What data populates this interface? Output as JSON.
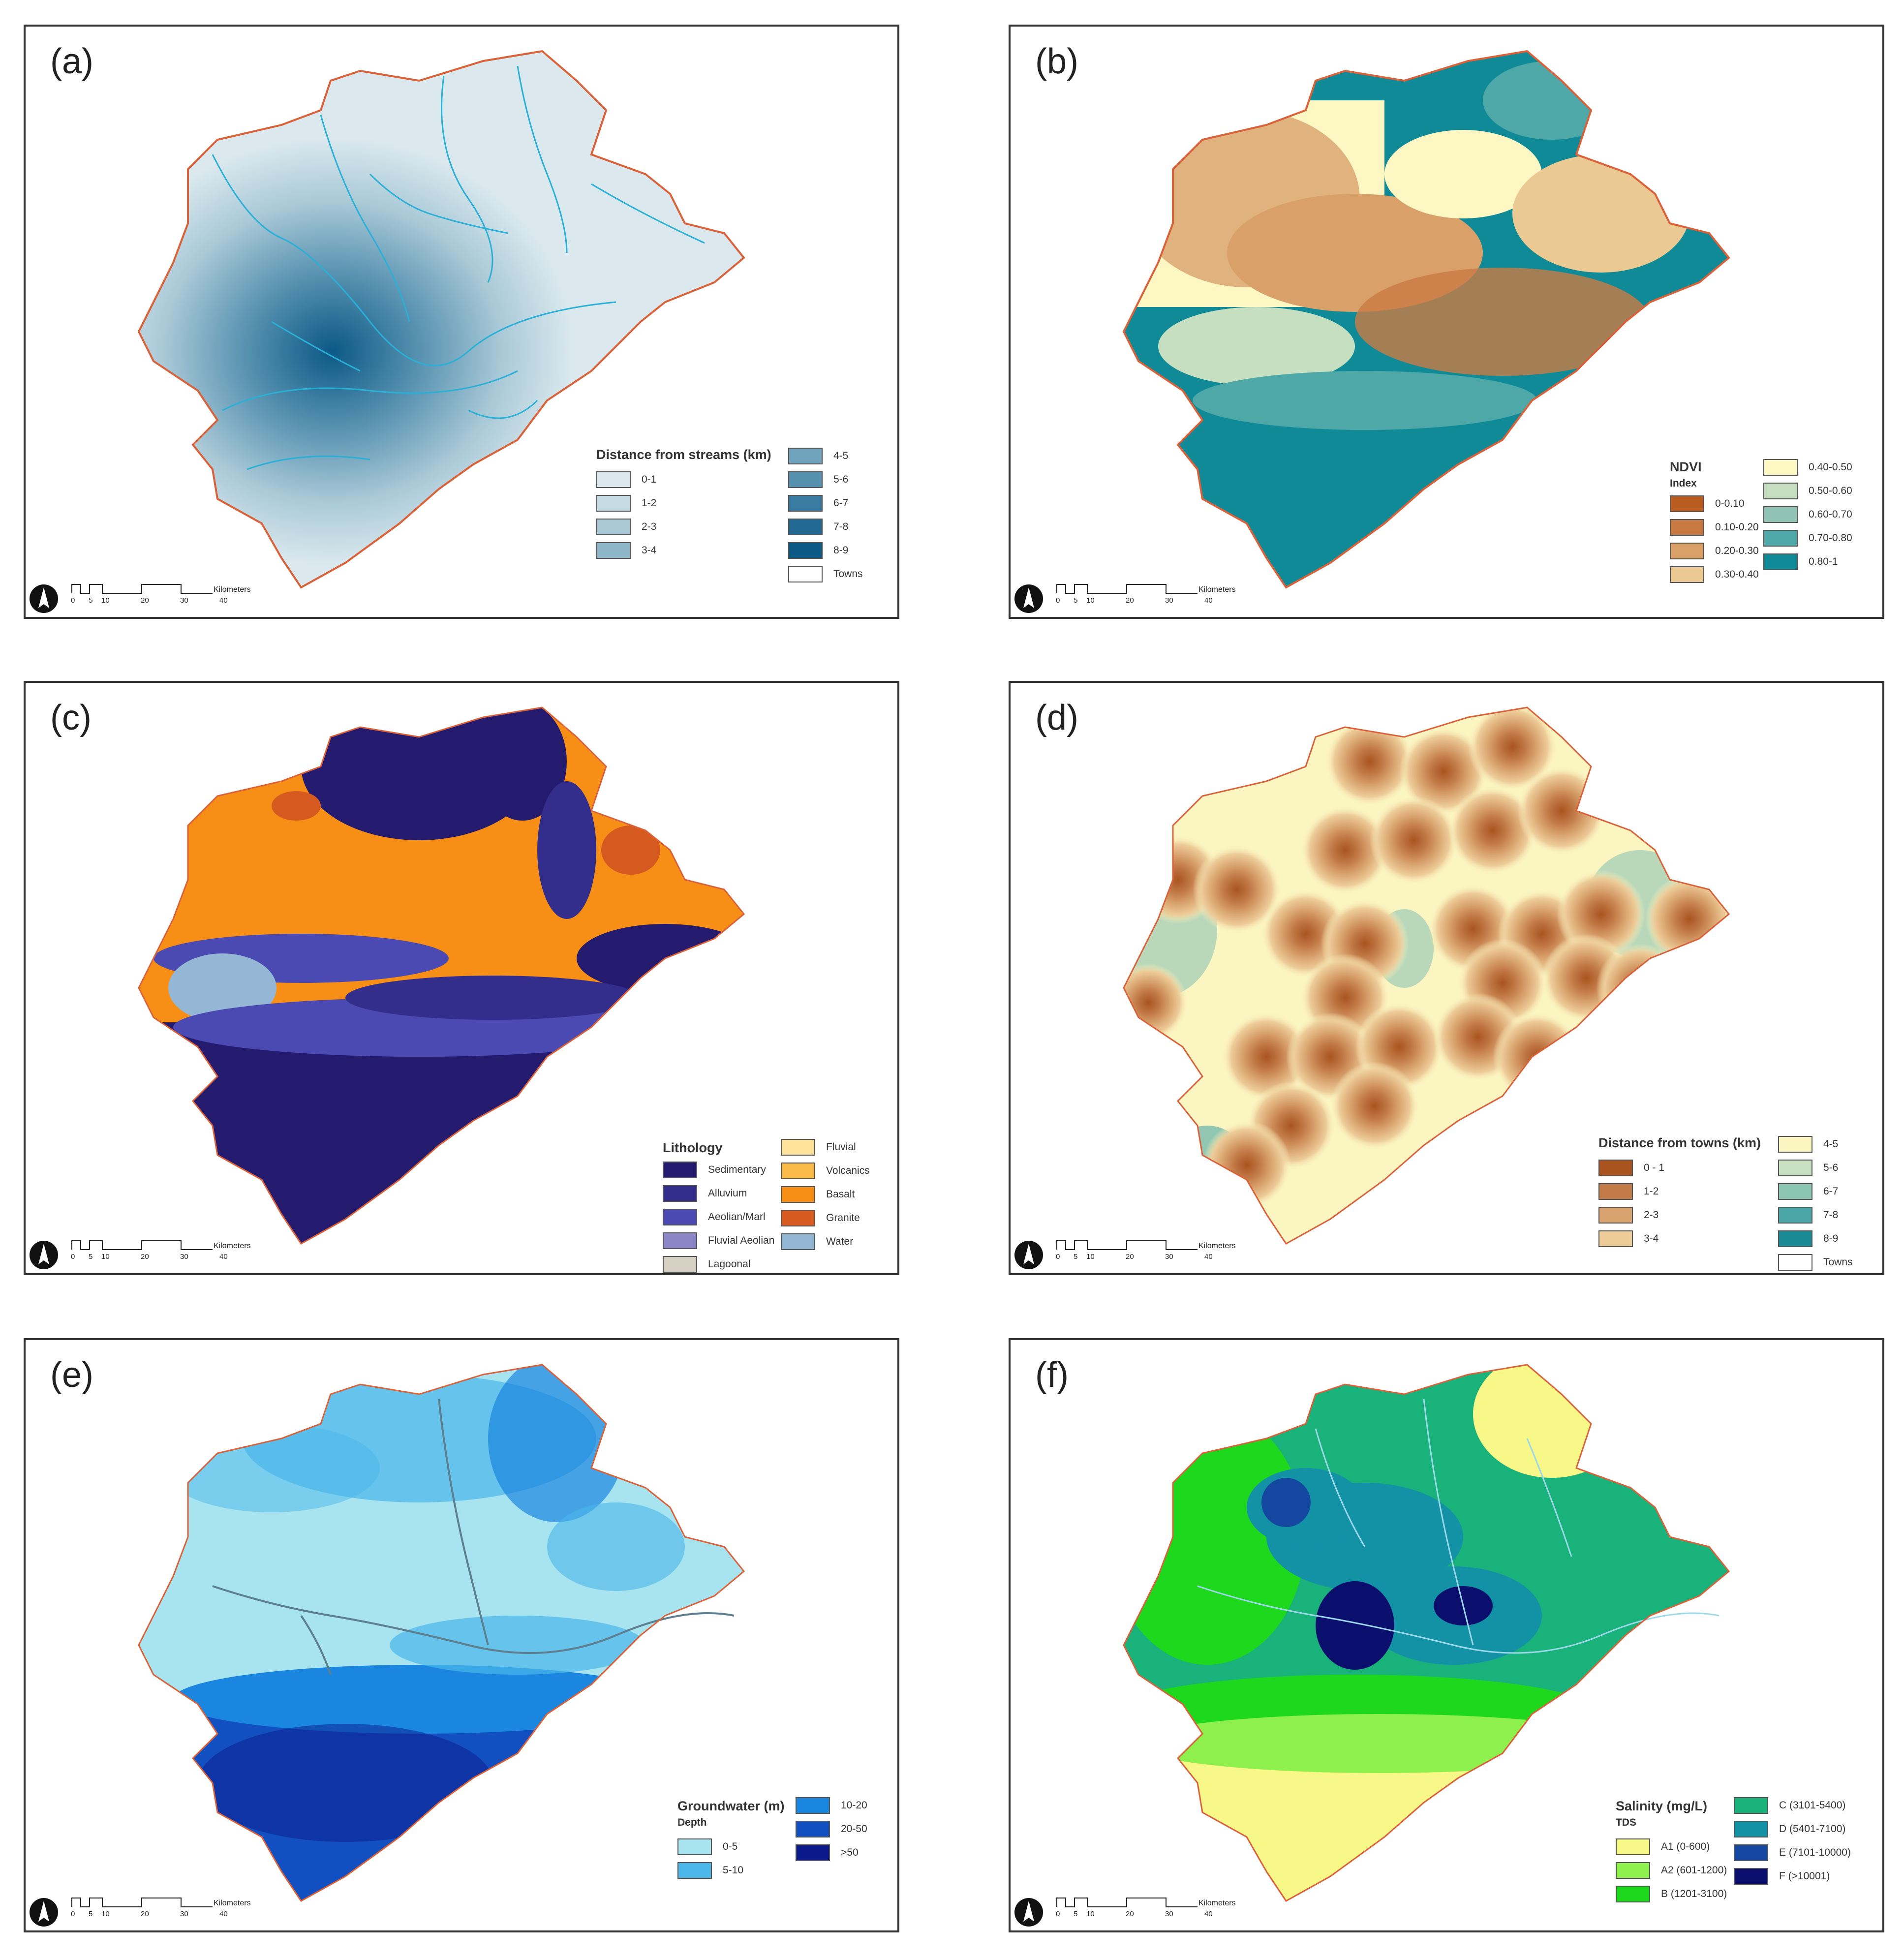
{
  "colors": {
    "boundary": "#d9623a",
    "stream": "#2ab0d6",
    "frame": "#333333"
  },
  "scale": {
    "unit": "Kilometers",
    "ticks": [
      "0",
      "5",
      "10",
      "20",
      "30",
      "40"
    ]
  },
  "panels": {
    "a": {
      "label": "(a)",
      "legend_title": "Distance from streams (km)",
      "items": [
        {
          "label": "0-1",
          "color": "#dbe9ee"
        },
        {
          "label": "1-2",
          "color": "#c4dbe4"
        },
        {
          "label": "2-3",
          "color": "#a9c9d7"
        },
        {
          "label": "3-4",
          "color": "#8db6c9"
        },
        {
          "label": "4-5",
          "color": "#71a3bc"
        },
        {
          "label": "5-6",
          "color": "#5590af"
        },
        {
          "label": "6-7",
          "color": "#3a7ca1"
        },
        {
          "label": "7-8",
          "color": "#226a94"
        },
        {
          "label": "8-9",
          "color": "#0c5986"
        },
        {
          "label": "Towns",
          "color": "#ffffff"
        }
      ]
    },
    "b": {
      "label": "(b)",
      "legend_title": "NDVI",
      "legend_sub": "Index",
      "items": [
        {
          "label": "0-0.10",
          "color": "#b85c1f"
        },
        {
          "label": "0.10-0.20",
          "color": "#c97a43"
        },
        {
          "label": "0.20-0.30",
          "color": "#daa06a"
        },
        {
          "label": "0.30-0.40",
          "color": "#ebc992"
        },
        {
          "label": "0.40-0.50",
          "color": "#fcf7c3"
        },
        {
          "label": "0.50-0.60",
          "color": "#c6dfc0"
        },
        {
          "label": "0.60-0.70",
          "color": "#8fc3b4"
        },
        {
          "label": "0.70-0.80",
          "color": "#4ea8a8"
        },
        {
          "label": "0.80-1",
          "color": "#0f8a96"
        }
      ]
    },
    "c": {
      "label": "(c)",
      "legend_title": "Lithology",
      "items": [
        {
          "label": "Sedimentary",
          "color": "#241a6e"
        },
        {
          "label": "Alluvium",
          "color": "#332d8c"
        },
        {
          "label": "Aeolian/Marl",
          "color": "#4b49b2"
        },
        {
          "label": "Fluvial Aeolian",
          "color": "#8d86c6"
        },
        {
          "label": "Lagoonal",
          "color": "#d7d1c3"
        },
        {
          "label": "Fluvial",
          "color": "#fde49a"
        },
        {
          "label": "Volcanics",
          "color": "#fbbb4a"
        },
        {
          "label": "Basalt",
          "color": "#f78f16"
        },
        {
          "label": "Granite",
          "color": "#d65a20"
        },
        {
          "label": "Water",
          "color": "#94b7d6"
        }
      ]
    },
    "d": {
      "label": "(d)",
      "legend_title": "Distance from towns (km)",
      "items": [
        {
          "label": "0 - 1",
          "color": "#a9541f"
        },
        {
          "label": "1-2",
          "color": "#c27a47"
        },
        {
          "label": "2-3",
          "color": "#d9a36f"
        },
        {
          "label": "3-4",
          "color": "#edcc98"
        },
        {
          "label": "4-5",
          "color": "#fbf5c2"
        },
        {
          "label": "5-6",
          "color": "#c7e0c0"
        },
        {
          "label": "6-7",
          "color": "#8cc4b2"
        },
        {
          "label": "7-8",
          "color": "#4aa6a6"
        },
        {
          "label": "8-9",
          "color": "#1a8a96"
        },
        {
          "label": "Towns",
          "color": "#ffffff"
        }
      ]
    },
    "e": {
      "label": "(e)",
      "legend_title": "Groundwater (m)",
      "legend_sub": "Depth",
      "items": [
        {
          "label": "0-5",
          "color": "#a8e4f0"
        },
        {
          "label": "5-10",
          "color": "#4ab6ea"
        },
        {
          "label": "10-20",
          "color": "#1a86e0"
        },
        {
          "label": "20-50",
          "color": "#124fc0"
        },
        {
          "label": ">50",
          "color": "#0a1a8a"
        }
      ]
    },
    "f": {
      "label": "(f)",
      "legend_title": "Salinity (mg/L)",
      "legend_sub": "TDS",
      "items": [
        {
          "label": "A1 (0-600)",
          "color": "#f8f889"
        },
        {
          "label": "A2 (601-1200)",
          "color": "#8ef04c"
        },
        {
          "label": "B (1201-3100)",
          "color": "#1ed81e"
        },
        {
          "label": "C (3101-5400)",
          "color": "#19b27a"
        },
        {
          "label": "D (5401-7100)",
          "color": "#1392a6"
        },
        {
          "label": "E (7101-10000)",
          "color": "#1448a0"
        },
        {
          "label": "F (>10001)",
          "color": "#0a0f6e"
        }
      ]
    }
  }
}
